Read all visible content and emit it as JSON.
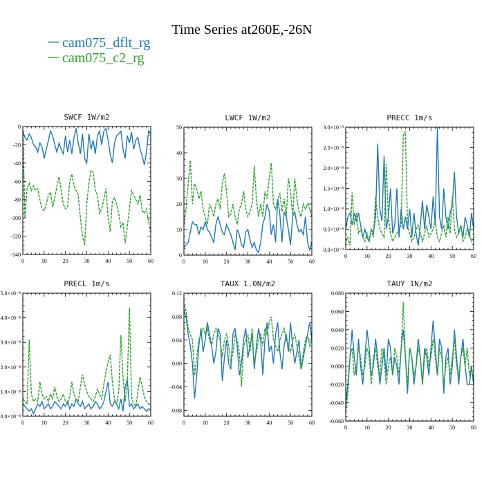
{
  "title": "Time Series at260E,-26N",
  "legend": [
    {
      "name": "cam075_dflt_rg",
      "color": "#1f77b4"
    },
    {
      "name": "cam075_c2_rg",
      "color": "#2ca02c"
    }
  ],
  "chart_data": [
    {
      "type": "line",
      "title": "SWCF",
      "units": "1W/m2",
      "xlim": [
        0,
        60
      ],
      "ylim": [
        -140,
        0
      ],
      "xticks": [
        "0",
        "10",
        "20",
        "30",
        "40",
        "50",
        "60"
      ],
      "yticks": [
        {
          "v": 0,
          "label": "0"
        },
        {
          "v": -20,
          "label": "-20"
        },
        {
          "v": -40,
          "label": "-40"
        },
        {
          "v": -60,
          "label": "-60"
        },
        {
          "v": -80,
          "label": "-80"
        },
        {
          "v": -100,
          "label": "-100"
        },
        {
          "v": -120,
          "label": "-120"
        },
        {
          "v": -140,
          "label": "-140"
        }
      ],
      "series": [
        {
          "color": "#1f77b4",
          "dashed": false,
          "values": [
            -5,
            -12,
            -15,
            -8,
            -12,
            -20,
            -22,
            -28,
            -18,
            -22,
            -35,
            -25,
            -15,
            -5,
            -10,
            -20,
            -28,
            -18,
            -25,
            -30,
            -10,
            -28,
            -15,
            -30,
            -12,
            -2,
            -18,
            -30,
            -8,
            -35,
            -40,
            -8,
            -25,
            -15,
            -30,
            -10,
            -5,
            -20,
            -5,
            -2,
            -15,
            -30,
            -40,
            -18,
            -10,
            -8,
            -5,
            -25,
            -35,
            -10,
            -18,
            -6,
            -25,
            -15,
            -12,
            -25,
            -32,
            -42,
            -28,
            -5,
            -8
          ]
        },
        {
          "color": "#2ca02c",
          "dashed": true,
          "values": [
            -5,
            -100,
            -68,
            -62,
            -70,
            -65,
            -70,
            -68,
            -80,
            -90,
            -92,
            -85,
            -75,
            -72,
            -88,
            -78,
            -65,
            -55,
            -70,
            -85,
            -90,
            -88,
            -60,
            -52,
            -65,
            -70,
            -75,
            -100,
            -120,
            -130,
            -85,
            -62,
            -48,
            -50,
            -70,
            -75,
            -95,
            -90,
            -80,
            -68,
            -100,
            -115,
            -82,
            -78,
            -85,
            -95,
            -110,
            -105,
            -128,
            -110,
            -90,
            -70,
            -75,
            -80,
            -85,
            -75,
            -92,
            -95,
            -90,
            -105,
            -115
          ]
        }
      ]
    },
    {
      "type": "line",
      "title": "LWCF",
      "units": "1W/m2",
      "xlim": [
        0,
        60
      ],
      "ylim": [
        0,
        50
      ],
      "xticks": [
        "0",
        "10",
        "20",
        "30",
        "40",
        "50",
        "60"
      ],
      "yticks": [
        {
          "v": 0,
          "label": "0"
        },
        {
          "v": 10,
          "label": "10"
        },
        {
          "v": 20,
          "label": "20"
        },
        {
          "v": 30,
          "label": "30"
        },
        {
          "v": 40,
          "label": "40"
        },
        {
          "v": 50,
          "label": "50"
        }
      ],
      "series": [
        {
          "color": "#1f77b4",
          "dashed": false,
          "values": [
            3,
            4,
            5,
            9,
            13,
            12,
            12,
            8,
            11,
            10,
            13,
            10,
            9,
            7,
            5,
            12,
            15,
            12,
            9,
            8,
            12,
            10,
            8,
            5,
            2,
            10,
            8,
            4,
            3,
            9,
            10,
            6,
            3,
            5,
            2,
            1,
            5,
            12,
            15,
            20,
            17,
            8,
            12,
            5,
            22,
            16,
            5,
            17,
            15,
            10,
            4,
            15,
            17,
            12,
            9,
            10,
            8,
            15,
            5,
            2,
            5
          ]
        },
        {
          "color": "#2ca02c",
          "dashed": true,
          "values": [
            12,
            18,
            28,
            37,
            20,
            28,
            26,
            22,
            25,
            18,
            15,
            12,
            20,
            18,
            15,
            20,
            22,
            18,
            28,
            32,
            25,
            15,
            16,
            20,
            15,
            12,
            18,
            20,
            25,
            18,
            15,
            17,
            20,
            35,
            22,
            15,
            20,
            15,
            25,
            22,
            30,
            36,
            20,
            18,
            22,
            24,
            17,
            22,
            15,
            30,
            25,
            15,
            30,
            22,
            17,
            15,
            20,
            18,
            20,
            18,
            15
          ]
        }
      ]
    },
    {
      "type": "line",
      "title": "PRECC",
      "units": "1m/s",
      "xlim": [
        0,
        60
      ],
      "ylim": [
        0,
        3e-08
      ],
      "xticks": [
        "0",
        "10",
        "20",
        "30",
        "40",
        "50",
        "60"
      ],
      "yticks": [
        {
          "v": 0,
          "label": "0.0×10⁻⁸"
        },
        {
          "v": 5e-09,
          "label": "0.5×10⁻⁸"
        },
        {
          "v": 1e-08,
          "label": "1.0×10⁻⁸"
        },
        {
          "v": 1.5e-08,
          "label": "1.5×10⁻⁸"
        },
        {
          "v": 2e-08,
          "label": "2.0×10⁻⁸"
        },
        {
          "v": 2.5e-08,
          "label": "2.5×10⁻⁸"
        },
        {
          "v": 3e-08,
          "label": "3.0×10⁻⁸"
        }
      ],
      "series": [
        {
          "color": "#1f77b4",
          "dashed": false,
          "values": [
            5e-09,
            8e-09,
            9e-09,
            6e-09,
            9e-09,
            7e-09,
            9e-09,
            6e-09,
            3e-09,
            5e-09,
            3e-09,
            2e-09,
            5e-09,
            4e-09,
            8e-09,
            2.6e-08,
            1e-08,
            7e-09,
            2.3e-08,
            5e-09,
            8e-09,
            1.5e-08,
            4e-09,
            6e-09,
            1.5e-08,
            3e-09,
            1e-08,
            5e-09,
            8e-09,
            5e-09,
            1e-08,
            3e-09,
            9e-09,
            4e-09,
            1e-09,
            6e-09,
            1.2e-08,
            5e-09,
            1.1e-08,
            8e-09,
            5e-09,
            1.3e-08,
            6e-09,
            3e-08,
            8e-09,
            5e-09,
            1.5e-08,
            8e-09,
            5e-09,
            9e-09,
            1.1e-08,
            1.9e-08,
            8e-09,
            4e-09,
            6e-09,
            3e-09,
            8e-09,
            6e-09,
            3e-09,
            9e-09,
            5e-09
          ]
        },
        {
          "color": "#2ca02c",
          "dashed": true,
          "values": [
            2e-09,
            3e-09,
            1e-09,
            1.4e-08,
            6e-09,
            9e-09,
            4e-09,
            5e-09,
            3e-09,
            2e-09,
            4e-09,
            2e-09,
            5e-09,
            3e-09,
            1.3e-08,
            8e-09,
            5e-09,
            4e-09,
            3e-09,
            2.1e-08,
            8e-09,
            4e-09,
            2e-09,
            3e-09,
            4e-09,
            5e-09,
            6e-09,
            2.8e-08,
            2.9e-08,
            6e-09,
            4e-09,
            2e-09,
            3e-09,
            5e-09,
            6e-09,
            4e-09,
            2e-09,
            4e-09,
            6e-09,
            3e-09,
            4e-09,
            5e-09,
            7e-09,
            3e-09,
            2e-09,
            4e-09,
            6e-09,
            3e-09,
            8e-09,
            4e-09,
            1.3e-08,
            5e-09,
            3e-09,
            4e-09,
            6e-09,
            2e-09,
            3e-09,
            5e-09,
            4e-09,
            2e-09,
            3e-09
          ]
        }
      ]
    },
    {
      "type": "line",
      "title": "PRECL",
      "units": "1m/s",
      "xlim": [
        0,
        60
      ],
      "ylim": [
        0,
        5e-08
      ],
      "xticks": [
        "0",
        "10",
        "20",
        "30",
        "40",
        "50",
        "60"
      ],
      "yticks": [
        {
          "v": 0,
          "label": "0.0×10⁻⁸"
        },
        {
          "v": 1e-08,
          "label": "1.0×10⁻⁸"
        },
        {
          "v": 2e-08,
          "label": "2.0×10⁻⁸"
        },
        {
          "v": 3e-08,
          "label": "3.0×10⁻⁸"
        },
        {
          "v": 4e-08,
          "label": "4.0×10⁻⁸"
        },
        {
          "v": 5e-08,
          "label": "5.0×10⁻⁸"
        }
      ],
      "series": [
        {
          "color": "#1f77b4",
          "dashed": false,
          "values": [
            5e-09,
            4e-09,
            3e-09,
            2e-09,
            3e-09,
            1e-09,
            3e-09,
            5e-09,
            4e-09,
            6e-09,
            3e-09,
            4e-09,
            5e-09,
            3e-09,
            4e-09,
            6e-09,
            5e-09,
            4e-09,
            3e-09,
            5e-09,
            4e-09,
            6e-09,
            3e-09,
            5e-09,
            4e-09,
            7e-09,
            5e-09,
            4e-09,
            6e-09,
            3e-09,
            4e-09,
            5e-09,
            3e-09,
            4e-09,
            6e-09,
            5e-09,
            3e-09,
            4e-09,
            6e-09,
            1e-08,
            1.4e-08,
            5e-09,
            4e-09,
            6e-09,
            5e-09,
            3e-09,
            7e-09,
            2e-09,
            1.2e-08,
            1.5e-08,
            4e-09,
            5e-09,
            3e-09,
            4e-09,
            5e-09,
            3e-09,
            4e-09,
            3e-09,
            2e-09,
            3e-09,
            3e-09
          ]
        },
        {
          "color": "#2ca02c",
          "dashed": true,
          "values": [
            7e-09,
            6e-09,
            5e-09,
            3.1e-08,
            9e-09,
            6e-09,
            7e-09,
            6e-09,
            1.4e-08,
            9e-09,
            7e-09,
            8e-09,
            6e-09,
            9e-09,
            7e-09,
            1.2e-08,
            8e-09,
            6e-09,
            7e-09,
            9e-09,
            6e-09,
            5e-09,
            8e-09,
            1.4e-08,
            9e-09,
            7e-09,
            6e-09,
            1.2e-08,
            1.7e-08,
            1.3e-08,
            1e-08,
            8e-09,
            7e-09,
            6e-09,
            8e-09,
            1.1e-08,
            9e-09,
            7e-09,
            1.3e-08,
            1.8e-08,
            2.2e-08,
            2.5e-08,
            1.4e-08,
            7e-09,
            5e-09,
            1e-08,
            3.3e-08,
            1.6e-08,
            6e-09,
            1.4e-08,
            4.4e-08,
            8e-09,
            5e-09,
            4e-09,
            1e-08,
            1.6e-08,
            1.2e-08,
            8e-09,
            6e-09,
            5e-09,
            4e-09
          ]
        }
      ]
    },
    {
      "type": "line",
      "title": "TAUX",
      "units": "1.0N/m2",
      "xlim": [
        0,
        60
      ],
      "ylim": [
        -0.09,
        0.12
      ],
      "xticks": [
        "0",
        "10",
        "20",
        "30",
        "40",
        "50",
        "60"
      ],
      "yticks": [
        {
          "v": -0.08,
          "label": "-0.08"
        },
        {
          "v": -0.04,
          "label": "-0.04"
        },
        {
          "v": 0.0,
          "label": "0.00"
        },
        {
          "v": 0.04,
          "label": "0.04"
        },
        {
          "v": 0.08,
          "label": "0.08"
        },
        {
          "v": 0.12,
          "label": "0.12"
        }
      ],
      "series": [
        {
          "color": "#1f77b4",
          "dashed": false,
          "values": [
            0.09,
            0.08,
            0.05,
            0.03,
            0.0,
            -0.06,
            -0.02,
            0.03,
            0.06,
            0.02,
            0.04,
            0.07,
            0.05,
            0.03,
            0.0,
            0.02,
            0.06,
            0.05,
            -0.03,
            0.01,
            0.04,
            0.0,
            -0.01,
            0.05,
            0.06,
            0.03,
            -0.02,
            0.0,
            0.04,
            0.06,
            0.01,
            0.03,
            0.05,
            -0.01,
            0.03,
            0.06,
            0.04,
            -0.02,
            0.04,
            0.07,
            0.02,
            0.03,
            0.0,
            0.05,
            0.07,
            0.02,
            -0.01,
            0.03,
            0.05,
            0.02,
            0.07,
            0.03,
            0.0,
            0.02,
            0.04,
            -0.01,
            0.01,
            0.03,
            0.05,
            0.07,
            0.04
          ]
        },
        {
          "color": "#2ca02c",
          "dashed": true,
          "values": [
            0.1,
            0.09,
            0.06,
            0.05,
            0.04,
            -0.02,
            0.01,
            0.04,
            0.05,
            0.06,
            0.05,
            0.06,
            0.04,
            0.03,
            0.05,
            0.06,
            0.05,
            0.04,
            0.01,
            0.04,
            0.05,
            0.03,
            0.0,
            0.02,
            0.05,
            0.04,
            0.02,
            -0.04,
            0.03,
            0.04,
            0.05,
            0.02,
            0.06,
            0.0,
            0.02,
            0.04,
            0.05,
            0.03,
            0.06,
            0.05,
            0.07,
            0.08,
            0.04,
            0.03,
            0.02,
            0.04,
            0.05,
            0.06,
            0.04,
            0.03,
            0.02,
            0.04,
            0.05,
            0.03,
            0.01,
            -0.01,
            0.02,
            0.04,
            0.05,
            0.03,
            0.04
          ]
        }
      ]
    },
    {
      "type": "line",
      "title": "TAUY",
      "units": "1N/m2",
      "xlim": [
        0,
        60
      ],
      "ylim": [
        -0.06,
        0.08
      ],
      "xticks": [
        "0",
        "10",
        "20",
        "30",
        "40",
        "50",
        "60"
      ],
      "yticks": [
        {
          "v": -0.06,
          "label": "-0.060"
        },
        {
          "v": -0.04,
          "label": "-0.040"
        },
        {
          "v": -0.02,
          "label": "-0.020"
        },
        {
          "v": 0.0,
          "label": "0.000"
        },
        {
          "v": 0.02,
          "label": "0.020"
        },
        {
          "v": 0.04,
          "label": "0.040"
        },
        {
          "v": 0.06,
          "label": "0.060"
        },
        {
          "v": 0.08,
          "label": "0.080"
        }
      ],
      "series": [
        {
          "color": "#1f77b4",
          "dashed": false,
          "values": [
            -0.04,
            -0.02,
            0.01,
            0.04,
            0.01,
            -0.01,
            0.03,
            0.0,
            -0.02,
            0.01,
            0.04,
            0.02,
            -0.01,
            0.0,
            0.03,
            0.01,
            -0.02,
            0.0,
            0.02,
            -0.01,
            0.03,
            0.02,
            -0.01,
            0.01,
            0.0,
            -0.02,
            0.02,
            0.04,
            0.01,
            -0.03,
            0.02,
            0.01,
            -0.02,
            0.0,
            0.03,
            0.01,
            -0.02,
            0.02,
            0.01,
            -0.01,
            0.02,
            0.05,
            0.02,
            -0.01,
            0.03,
            0.02,
            -0.03,
            0.01,
            0.02,
            -0.02,
            0.0,
            0.04,
            0.01,
            -0.02,
            0.01,
            0.03,
            0.0,
            -0.02,
            -0.02,
            0.0,
            -0.02
          ]
        },
        {
          "color": "#2ca02c",
          "dashed": true,
          "values": [
            -0.05,
            -0.03,
            0.01,
            0.02,
            -0.01,
            0.0,
            0.02,
            0.01,
            -0.01,
            0.0,
            0.02,
            0.01,
            -0.02,
            0.01,
            0.02,
            0.0,
            -0.01,
            0.02,
            0.01,
            -0.02,
            0.0,
            0.01,
            -0.01,
            0.02,
            0.01,
            -0.01,
            0.02,
            0.07,
            0.01,
            -0.02,
            0.02,
            0.01,
            -0.01,
            0.0,
            0.02,
            0.01,
            -0.02,
            0.01,
            0.02,
            0.0,
            0.01,
            0.03,
            0.01,
            -0.01,
            0.02,
            0.01,
            -0.02,
            0.0,
            0.01,
            -0.01,
            0.01,
            0.03,
            0.0,
            -0.01,
            0.01,
            0.02,
            0.0,
            0.02,
            -0.01,
            0.0,
            -0.02
          ]
        }
      ]
    }
  ]
}
